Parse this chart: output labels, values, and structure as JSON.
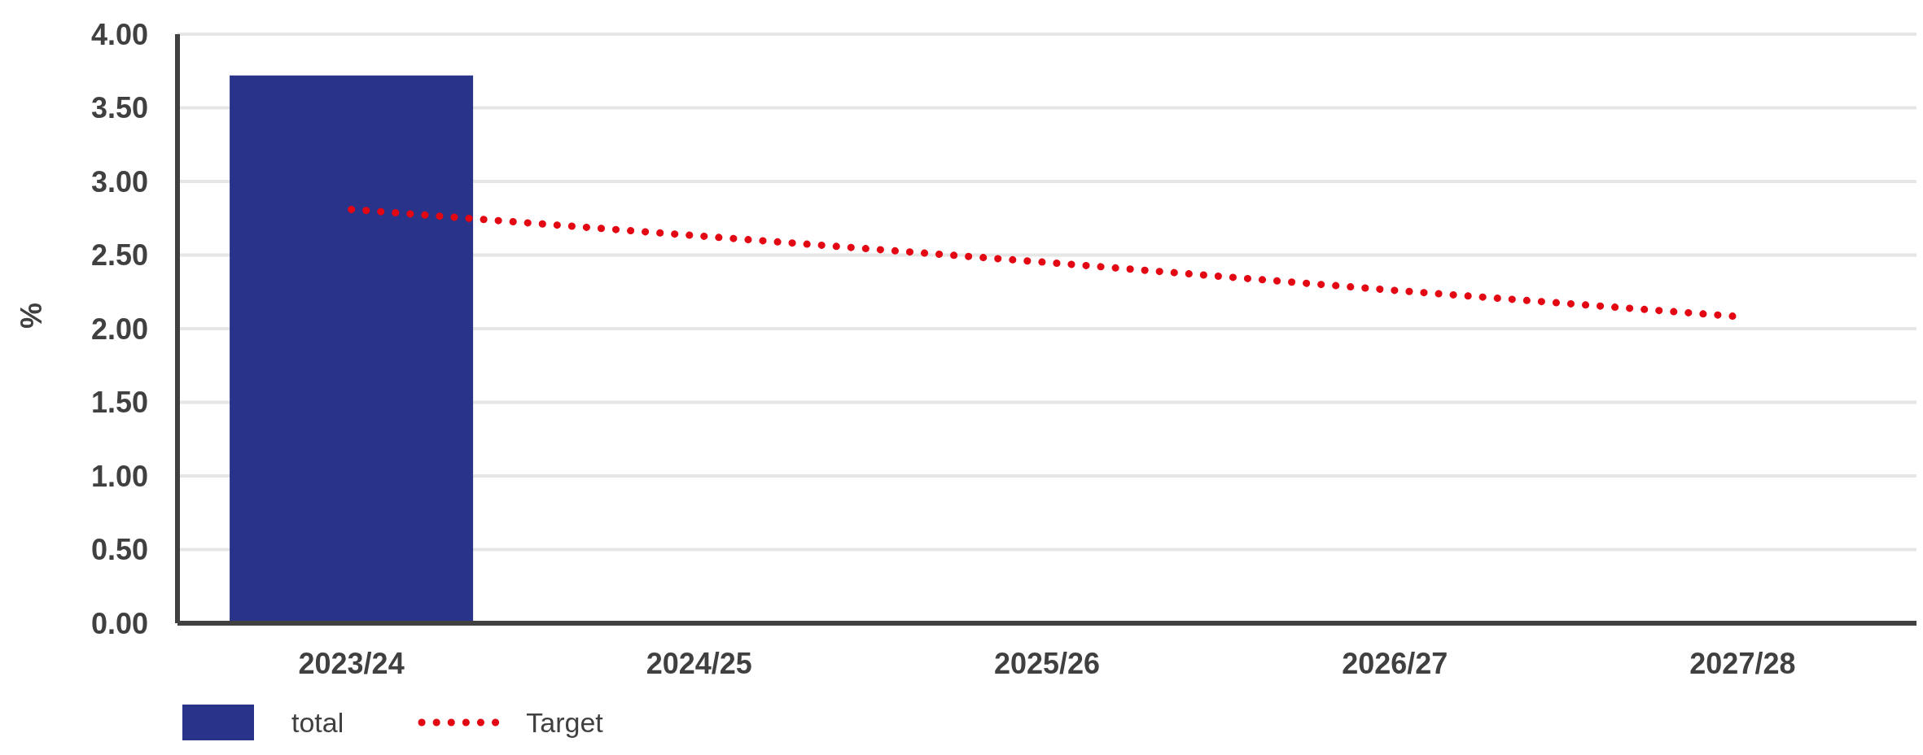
{
  "chart_data": {
    "type": "bar",
    "ylabel": "%",
    "categories": [
      "2023/24",
      "2024/25",
      "2025/26",
      "2026/27",
      "2027/28"
    ],
    "series": [
      {
        "name": "total",
        "color": "#283389",
        "values": [
          3.72,
          null,
          null,
          null,
          null
        ]
      },
      {
        "name": "Target",
        "type": "line",
        "color": "#e30613",
        "line_style": "dotted",
        "values": [
          2.81,
          2.63,
          2.45,
          2.26,
          2.08
        ]
      }
    ],
    "ylim": [
      0,
      4
    ],
    "yticks": [
      {
        "value": 0,
        "label": "0.00"
      },
      {
        "value": 0.5,
        "label": "0.50"
      },
      {
        "value": 1,
        "label": "1.00"
      },
      {
        "value": 1.5,
        "label": "1.50"
      },
      {
        "value": 2,
        "label": "2.00"
      },
      {
        "value": 2.5,
        "label": "2.50"
      },
      {
        "value": 3,
        "label": "3.00"
      },
      {
        "value": 3.5,
        "label": "3.50"
      },
      {
        "value": 4,
        "label": "4.00"
      }
    ],
    "grid": "y",
    "legend": "bottom left"
  }
}
